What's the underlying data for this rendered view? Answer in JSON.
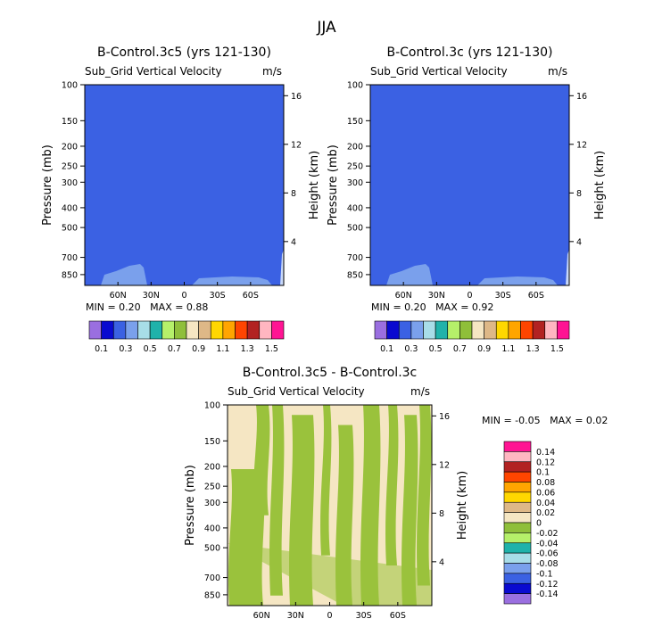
{
  "title": "JJA",
  "colors": {
    "field_uniform": "#3b61e3",
    "field_light": "#7aa0ec",
    "diff_positive": "#f5e6c3",
    "diff_negative": "#9ac23c"
  },
  "chart_data": [
    {
      "type": "heatmap",
      "title": "B-Control.3c5 (yrs 121-130)",
      "subtitle_left": "Sub_Grid Vertical Velocity",
      "subtitle_right": "m/s",
      "ylabel": "Pressure (mb)",
      "ylabel_right": "Height (km)",
      "yticks": [
        "100",
        "150",
        "200",
        "250",
        "300",
        "400",
        "500",
        "700",
        "850"
      ],
      "yticks_right": [
        "16",
        "12",
        "8",
        "4"
      ],
      "xticks": [
        "60N",
        "30N",
        "0",
        "30S",
        "60S"
      ],
      "min_label": "MIN =",
      "min": "0.20",
      "max_label": "MAX =",
      "max": "0.88",
      "colorbar_labels": [
        "0.1",
        "0.3",
        "0.5",
        "0.7",
        "0.9",
        "1.1",
        "1.3",
        "1.5"
      ],
      "colorbar_colors": [
        "#9a6fe0",
        "#0a0ad0",
        "#3b61e3",
        "#7aa0ec",
        "#a8dde8",
        "#20b2aa",
        "#b5f06a",
        "#8fbf3a",
        "#f5e6c3",
        "#deb887",
        "#ffd700",
        "#ffa500",
        "#ff4500",
        "#b22222",
        "#ffb6c1",
        "#ff1493"
      ]
    },
    {
      "type": "heatmap",
      "title": "B-Control.3c (yrs 121-130)",
      "subtitle_left": "Sub_Grid Vertical Velocity",
      "subtitle_right": "m/s",
      "ylabel": "Pressure (mb)",
      "ylabel_right": "Height (km)",
      "yticks": [
        "100",
        "150",
        "200",
        "250",
        "300",
        "400",
        "500",
        "700",
        "850"
      ],
      "yticks_right": [
        "16",
        "12",
        "8",
        "4"
      ],
      "xticks": [
        "60N",
        "30N",
        "0",
        "30S",
        "60S"
      ],
      "min_label": "MIN =",
      "min": "0.20",
      "max_label": "MAX =",
      "max": "0.92",
      "colorbar_labels": [
        "0.1",
        "0.3",
        "0.5",
        "0.7",
        "0.9",
        "1.1",
        "1.3",
        "1.5"
      ],
      "colorbar_colors": [
        "#9a6fe0",
        "#0a0ad0",
        "#3b61e3",
        "#7aa0ec",
        "#a8dde8",
        "#20b2aa",
        "#b5f06a",
        "#8fbf3a",
        "#f5e6c3",
        "#deb887",
        "#ffd700",
        "#ffa500",
        "#ff4500",
        "#b22222",
        "#ffb6c1",
        "#ff1493"
      ]
    },
    {
      "type": "heatmap",
      "title": "B-Control.3c5 - B-Control.3c",
      "subtitle_left": "Sub_Grid Vertical Velocity",
      "subtitle_right": "m/s",
      "ylabel": "Pressure (mb)",
      "ylabel_right": "Height (km)",
      "yticks": [
        "100",
        "150",
        "200",
        "250",
        "300",
        "400",
        "500",
        "700",
        "850"
      ],
      "yticks_right": [
        "16",
        "12",
        "8",
        "4"
      ],
      "xticks": [
        "60N",
        "30N",
        "0",
        "30S",
        "60S"
      ],
      "min_label": "MIN =",
      "min": "-0.05",
      "max_label": "MAX =",
      "max": "0.02",
      "colorbar_labels": [
        "0.14",
        "0.12",
        "0.1",
        "0.08",
        "0.06",
        "0.04",
        "0.02",
        "0",
        "-0.02",
        "-0.04",
        "-0.06",
        "-0.08",
        "-0.1",
        "-0.12",
        "-0.14"
      ],
      "colorbar_colors": [
        "#ff1493",
        "#ffb6c1",
        "#b22222",
        "#ff4500",
        "#ffa500",
        "#ffd700",
        "#deb887",
        "#f5e6c3",
        "#8fbf3a",
        "#b5f06a",
        "#20b2aa",
        "#a8dde8",
        "#7aa0ec",
        "#3b61e3",
        "#0a0ad0",
        "#9a6fe0"
      ]
    }
  ]
}
